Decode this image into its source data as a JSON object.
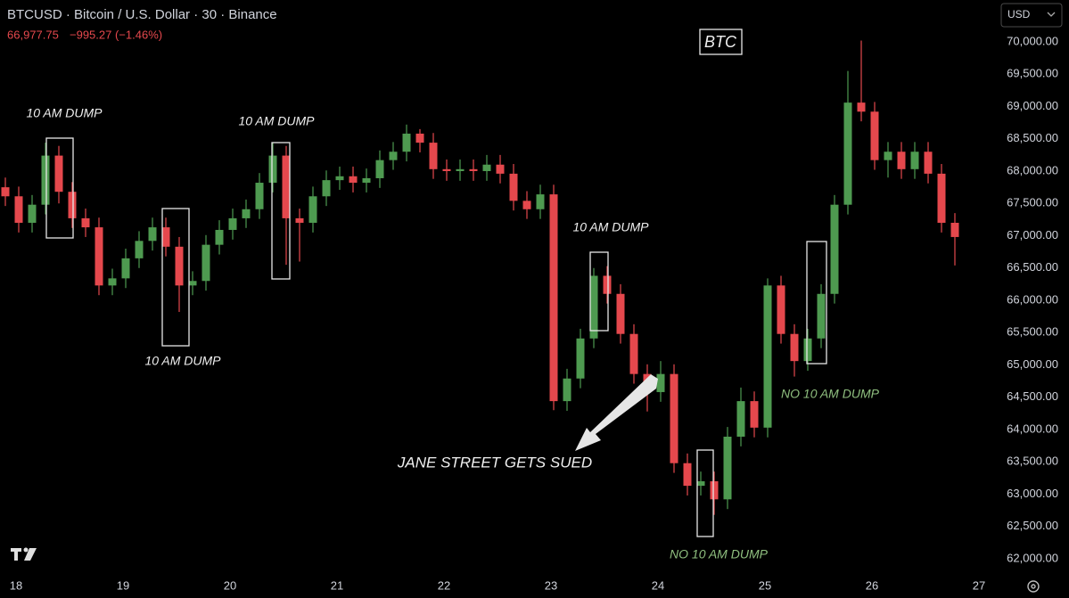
{
  "chart_data": {
    "type": "candlestick",
    "title": "BTCUSD · Bitcoin / U.S. Dollar · 30 · Binance",
    "last_price": "66,977.75",
    "change": "−995.27 (−1.46%)",
    "currency": "USD",
    "up_color": "#4e9a50",
    "down_color": "#e5484d",
    "xlim": [
      17.85,
      27.1
    ],
    "xticks": [
      18,
      19,
      20,
      21,
      22,
      23,
      24,
      25,
      26,
      27
    ],
    "ylim": [
      61683,
      70648
    ],
    "yticks": [
      {
        "value": 62000,
        "label": "62,000.00"
      },
      {
        "value": 62500,
        "label": "62,500.00"
      },
      {
        "value": 63000,
        "label": "63,000.00"
      },
      {
        "value": 63500,
        "label": "63,500.00"
      },
      {
        "value": 64000,
        "label": "64,000.00"
      },
      {
        "value": 64500,
        "label": "64,500.00"
      },
      {
        "value": 65000,
        "label": "65,000.00"
      },
      {
        "value": 65500,
        "label": "65,500.00"
      },
      {
        "value": 66000,
        "label": "66,000.00"
      },
      {
        "value": 66500,
        "label": "66,500.00"
      },
      {
        "value": 67000,
        "label": "67,000.00"
      },
      {
        "value": 67500,
        "label": "67,500.00"
      },
      {
        "value": 68000,
        "label": "68,000.00"
      },
      {
        "value": 68500,
        "label": "68,500.00"
      },
      {
        "value": 69000,
        "label": "69,000.00"
      },
      {
        "value": 69500,
        "label": "69,500.00"
      },
      {
        "value": 70000,
        "label": "70,000.00"
      }
    ],
    "grid": false,
    "x": [
      17.9,
      18.025,
      18.15,
      18.275,
      18.4,
      18.525,
      18.65,
      18.775,
      18.9,
      19.025,
      19.15,
      19.275,
      19.4,
      19.525,
      19.65,
      19.775,
      19.9,
      20.025,
      20.15,
      20.275,
      20.4,
      20.525,
      20.65,
      20.775,
      20.9,
      21.025,
      21.15,
      21.275,
      21.4,
      21.525,
      21.65,
      21.775,
      21.9,
      22.025,
      22.15,
      22.275,
      22.4,
      22.525,
      22.65,
      22.775,
      22.9,
      23.025,
      23.15,
      23.275,
      23.4,
      23.525,
      23.65,
      23.775,
      23.9,
      24.025,
      24.15,
      24.275,
      24.4,
      24.525,
      24.65,
      24.775,
      24.9,
      25.025,
      25.15,
      25.275,
      25.4,
      25.525,
      25.65,
      25.775,
      25.9,
      26.025,
      26.15,
      26.275,
      26.4,
      26.525,
      26.65,
      26.775
    ],
    "open": [
      67750,
      67610,
      67200,
      67480,
      68240,
      67680,
      67270,
      67130,
      66230,
      66340,
      66650,
      66920,
      67130,
      66830,
      66230,
      66300,
      66860,
      67090,
      67270,
      67410,
      67820,
      68240,
      67270,
      67200,
      67610,
      67860,
      67920,
      67820,
      67890,
      68170,
      68300,
      68580,
      68440,
      68030,
      68000,
      68030,
      68000,
      68100,
      67960,
      67540,
      67410,
      67640,
      64440,
      64790,
      65410,
      66380,
      66100,
      65480,
      64860,
      64580,
      64860,
      63480,
      63130,
      63200,
      62920,
      63890,
      64440,
      64030,
      66230,
      65480,
      65060,
      65410,
      66100,
      67480,
      69060,
      68920,
      68170,
      68300,
      68030,
      68300,
      67960,
      67200
    ],
    "high": [
      67900,
      67760,
      67630,
      68440,
      68390,
      67830,
      67420,
      67280,
      66490,
      66800,
      67070,
      67280,
      67280,
      66980,
      66450,
      67010,
      67240,
      67420,
      67560,
      67970,
      68440,
      68390,
      67420,
      67760,
      68010,
      68070,
      68070,
      68040,
      68320,
      68450,
      68720,
      68650,
      68590,
      68180,
      68180,
      68180,
      68250,
      68250,
      68110,
      67690,
      67790,
      67790,
      64940,
      65560,
      66500,
      66530,
      66250,
      65630,
      65010,
      65060,
      65010,
      63630,
      63350,
      63350,
      64040,
      64650,
      64590,
      66340,
      66380,
      65630,
      65560,
      66250,
      67630,
      69550,
      70020,
      69070,
      68450,
      68450,
      68450,
      68450,
      68110,
      67350
    ],
    "low": [
      67460,
      67050,
      67050,
      67330,
      67500,
      67120,
      66980,
      66080,
      66080,
      66190,
      66500,
      66770,
      66680,
      65820,
      66080,
      66150,
      66710,
      66940,
      67120,
      67260,
      67670,
      66550,
      66600,
      67050,
      67460,
      67710,
      67670,
      67670,
      67740,
      68020,
      68150,
      68290,
      67880,
      67850,
      67850,
      67850,
      67850,
      67810,
      67390,
      67260,
      67260,
      64300,
      64290,
      64640,
      65260,
      65950,
      65330,
      64710,
      64280,
      64430,
      63330,
      62980,
      62980,
      62680,
      62770,
      63740,
      63880,
      63880,
      65330,
      64820,
      64910,
      65260,
      65950,
      67330,
      68770,
      68020,
      67900,
      67880,
      67880,
      67810,
      67050,
      66540
    ],
    "close": [
      67610,
      67200,
      67480,
      68240,
      67680,
      67270,
      67130,
      66230,
      66340,
      66650,
      66920,
      67130,
      66830,
      66230,
      66300,
      66860,
      67090,
      67270,
      67410,
      67820,
      68240,
      67270,
      67200,
      67610,
      67860,
      67920,
      67820,
      67890,
      68170,
      68300,
      68580,
      68440,
      68030,
      68000,
      68030,
      68000,
      68100,
      67960,
      67540,
      67410,
      67640,
      64440,
      64790,
      65410,
      66380,
      66100,
      65480,
      64860,
      64580,
      64860,
      63480,
      63130,
      63200,
      62920,
      63890,
      64440,
      64030,
      66230,
      65480,
      65060,
      65410,
      66100,
      67480,
      69060,
      68920,
      68170,
      68300,
      68030,
      68300,
      67960,
      67200,
      66980
    ],
    "annotations": [
      "10 AM DUMP",
      "10 AM DUMP",
      "10 AM DUMP",
      "10 AM DUMP",
      "NO 10 AM DUMP",
      "NO 10 AM DUMP",
      "JANE STREET GETS SUED",
      "BTC"
    ],
    "annotation_colors": [
      "#f0f0f0",
      "#f0f0f0",
      "#f0f0f0",
      "#f0f0f0",
      "#8fbf7f",
      "#8fbf7f",
      "#f0f0f0",
      "#f0f0f0"
    ]
  }
}
